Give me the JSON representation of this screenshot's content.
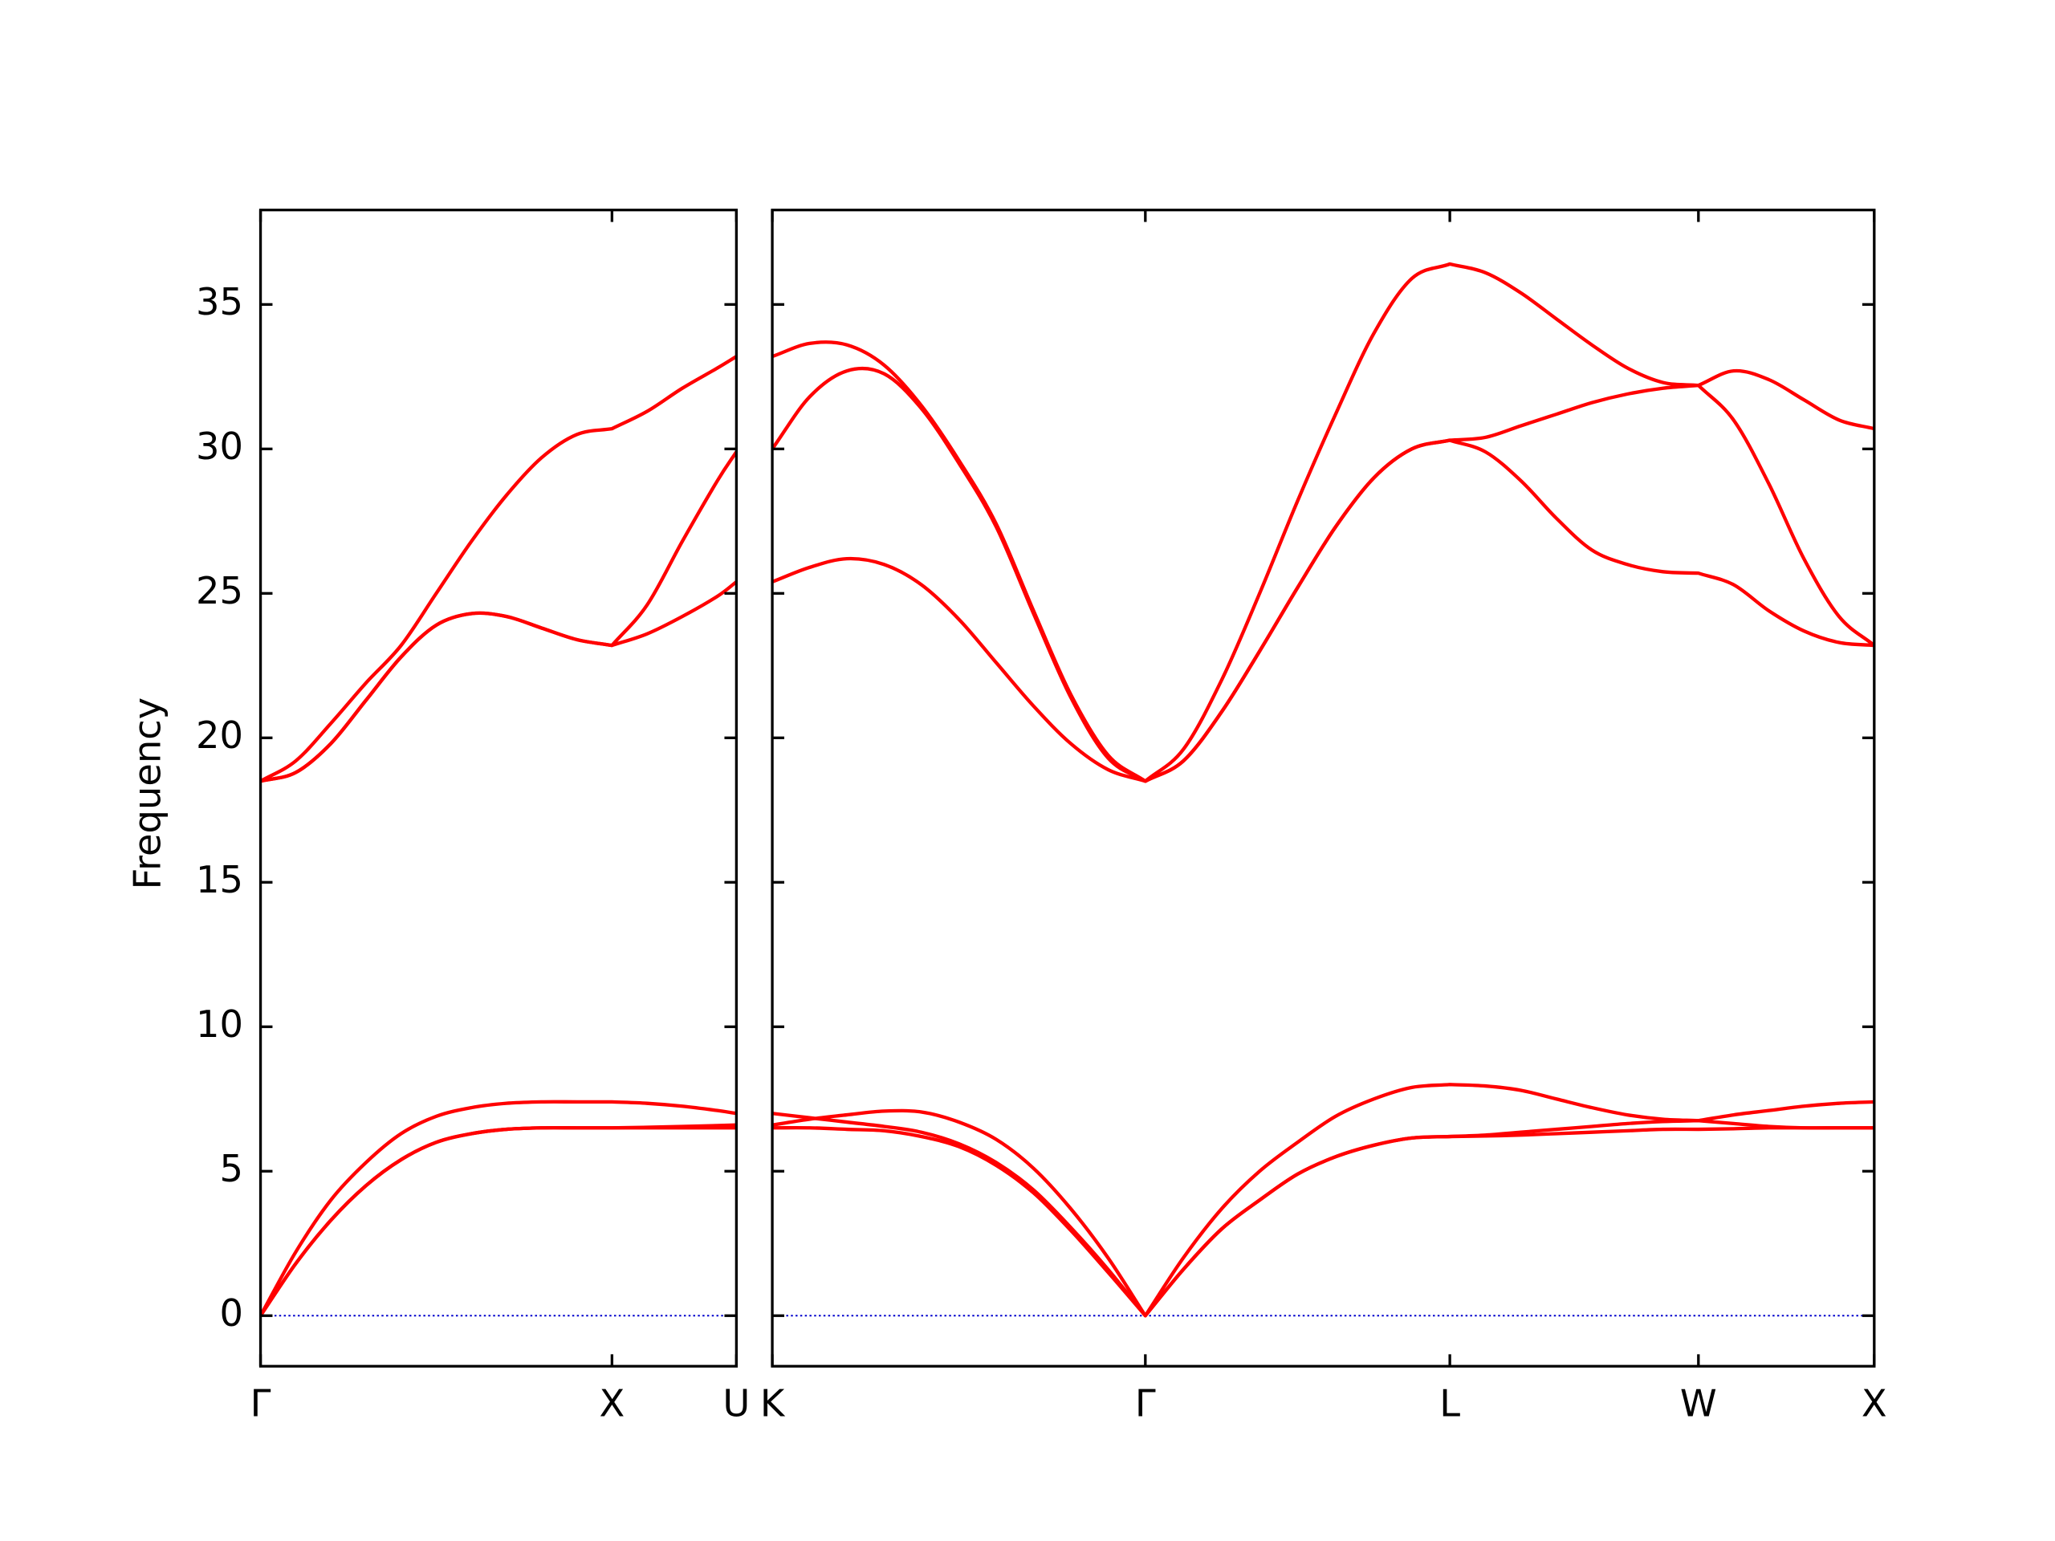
{
  "chart_data": [
    {
      "type": "line",
      "ylabel": "Frequency",
      "x": [
        0,
        0.1,
        0.2,
        0.3,
        0.4,
        0.5,
        0.6,
        0.7,
        0.8,
        0.9,
        1.0,
        1.1,
        1.2,
        1.3,
        1.354
      ],
      "xlim": [
        0,
        1.354
      ],
      "xticks": [
        {
          "value": 0,
          "label": "Γ"
        },
        {
          "value": 1.0,
          "label": "X"
        },
        {
          "value": 1.354,
          "label": "U"
        }
      ],
      "ylim": [
        -1.75,
        38.27
      ],
      "yticks": [
        0,
        5,
        10,
        15,
        20,
        25,
        30,
        35
      ],
      "hline": {
        "value": 0,
        "color": "#0000cc"
      },
      "series": [
        {
          "color": "#ff0000",
          "values": [
            0,
            1.8,
            3.3,
            4.5,
            5.4,
            6.0,
            6.3,
            6.45,
            6.5,
            6.5,
            6.5,
            6.5,
            6.5,
            6.5,
            6.5
          ]
        },
        {
          "color": "#ff0000",
          "values": [
            0,
            1.8,
            3.3,
            4.5,
            5.4,
            6.0,
            6.3,
            6.45,
            6.5,
            6.5,
            6.5,
            6.52,
            6.55,
            6.58,
            6.6
          ]
        },
        {
          "color": "#ff0000",
          "values": [
            0,
            2.2,
            4.0,
            5.3,
            6.3,
            6.9,
            7.2,
            7.35,
            7.4,
            7.4,
            7.4,
            7.35,
            7.25,
            7.1,
            7.0
          ]
        },
        {
          "color": "#ff0000",
          "values": [
            18.5,
            18.8,
            19.8,
            21.3,
            22.8,
            23.9,
            24.3,
            24.2,
            23.8,
            23.4,
            23.2,
            23.6,
            24.2,
            24.9,
            25.4
          ]
        },
        {
          "color": "#ff0000",
          "values": [
            18.5,
            18.8,
            19.8,
            21.3,
            22.8,
            23.9,
            24.3,
            24.2,
            23.8,
            23.4,
            23.2,
            24.6,
            26.8,
            28.9,
            29.9
          ]
        },
        {
          "color": "#ff0000",
          "values": [
            18.5,
            19.2,
            20.5,
            21.9,
            23.2,
            25.0,
            26.8,
            28.4,
            29.7,
            30.5,
            30.7,
            31.3,
            32.1,
            32.8,
            33.2
          ]
        }
      ]
    },
    {
      "type": "line",
      "x": [
        1.354,
        1.46,
        1.566,
        1.672,
        1.778,
        1.885,
        1.991,
        2.097,
        2.203,
        2.309,
        2.415,
        2.523,
        2.632,
        2.74,
        2.848,
        2.956,
        3.065,
        3.173,
        3.281,
        3.382,
        3.483,
        3.584,
        3.685,
        3.786,
        3.887,
        3.988,
        4.088,
        4.188,
        4.288,
        4.388,
        4.488
      ],
      "xlim": [
        1.354,
        4.488
      ],
      "xticks": [
        {
          "value": 1.354,
          "label": "K"
        },
        {
          "value": 2.415,
          "label": "Γ"
        },
        {
          "value": 3.281,
          "label": "L"
        },
        {
          "value": 3.988,
          "label": "W"
        },
        {
          "value": 4.488,
          "label": "X"
        }
      ],
      "ylim": [
        -1.75,
        38.27
      ],
      "yticks": [
        0,
        5,
        10,
        15,
        20,
        25,
        30,
        35
      ],
      "hline": {
        "value": 0,
        "color": "#0000cc"
      },
      "series": [
        {
          "color": "#ff0000",
          "values": [
            6.5,
            6.5,
            6.45,
            6.4,
            6.2,
            5.85,
            5.2,
            4.25,
            2.95,
            1.5,
            0,
            1.6,
            3.0,
            4.0,
            4.9,
            5.5,
            5.9,
            6.15,
            6.2,
            6.22,
            6.25,
            6.3,
            6.35,
            6.4,
            6.45,
            6.45,
            6.47,
            6.5,
            6.5,
            6.5,
            6.5
          ]
        },
        {
          "color": "#ff0000",
          "values": [
            6.6,
            6.8,
            6.95,
            7.08,
            7.05,
            6.7,
            6.1,
            5.1,
            3.7,
            2.0,
            0,
            1.6,
            3.0,
            4.0,
            4.9,
            5.5,
            5.9,
            6.15,
            6.2,
            6.25,
            6.35,
            6.45,
            6.55,
            6.65,
            6.72,
            6.75,
            6.65,
            6.55,
            6.5,
            6.5,
            6.5
          ]
        },
        {
          "color": "#ff0000",
          "values": [
            7.0,
            6.85,
            6.7,
            6.55,
            6.35,
            5.95,
            5.3,
            4.35,
            3.05,
            1.6,
            0,
            2.0,
            3.7,
            5.0,
            6.0,
            6.9,
            7.5,
            7.9,
            8.0,
            7.95,
            7.8,
            7.5,
            7.2,
            6.95,
            6.8,
            6.75,
            6.95,
            7.1,
            7.25,
            7.35,
            7.4
          ]
        },
        {
          "color": "#ff0000",
          "values": [
            25.4,
            25.9,
            26.2,
            26.0,
            25.3,
            24.1,
            22.6,
            21.1,
            19.8,
            18.9,
            18.5,
            19.2,
            20.9,
            23.0,
            25.2,
            27.3,
            29.0,
            30.0,
            30.3,
            29.9,
            28.9,
            27.6,
            26.5,
            26.0,
            25.75,
            25.7,
            25.3,
            24.4,
            23.7,
            23.3,
            23.2
          ]
        },
        {
          "color": "#ff0000",
          "values": [
            30.0,
            31.8,
            32.7,
            32.6,
            31.4,
            29.5,
            27.3,
            24.3,
            21.4,
            19.3,
            18.5,
            19.2,
            20.9,
            23.0,
            25.2,
            27.3,
            29.0,
            30.0,
            30.3,
            30.4,
            30.8,
            31.2,
            31.6,
            31.9,
            32.1,
            32.2,
            31.0,
            28.8,
            26.2,
            24.2,
            23.2
          ]
        },
        {
          "color": "#ff0000",
          "values": [
            33.2,
            33.65,
            33.6,
            32.9,
            31.5,
            29.6,
            27.4,
            24.4,
            21.5,
            19.4,
            18.5,
            19.6,
            22.0,
            25.0,
            28.2,
            31.2,
            34.0,
            35.9,
            36.4,
            36.1,
            35.4,
            34.5,
            33.6,
            32.8,
            32.3,
            32.2,
            32.7,
            32.4,
            31.7,
            31.0,
            30.7
          ]
        }
      ]
    }
  ]
}
